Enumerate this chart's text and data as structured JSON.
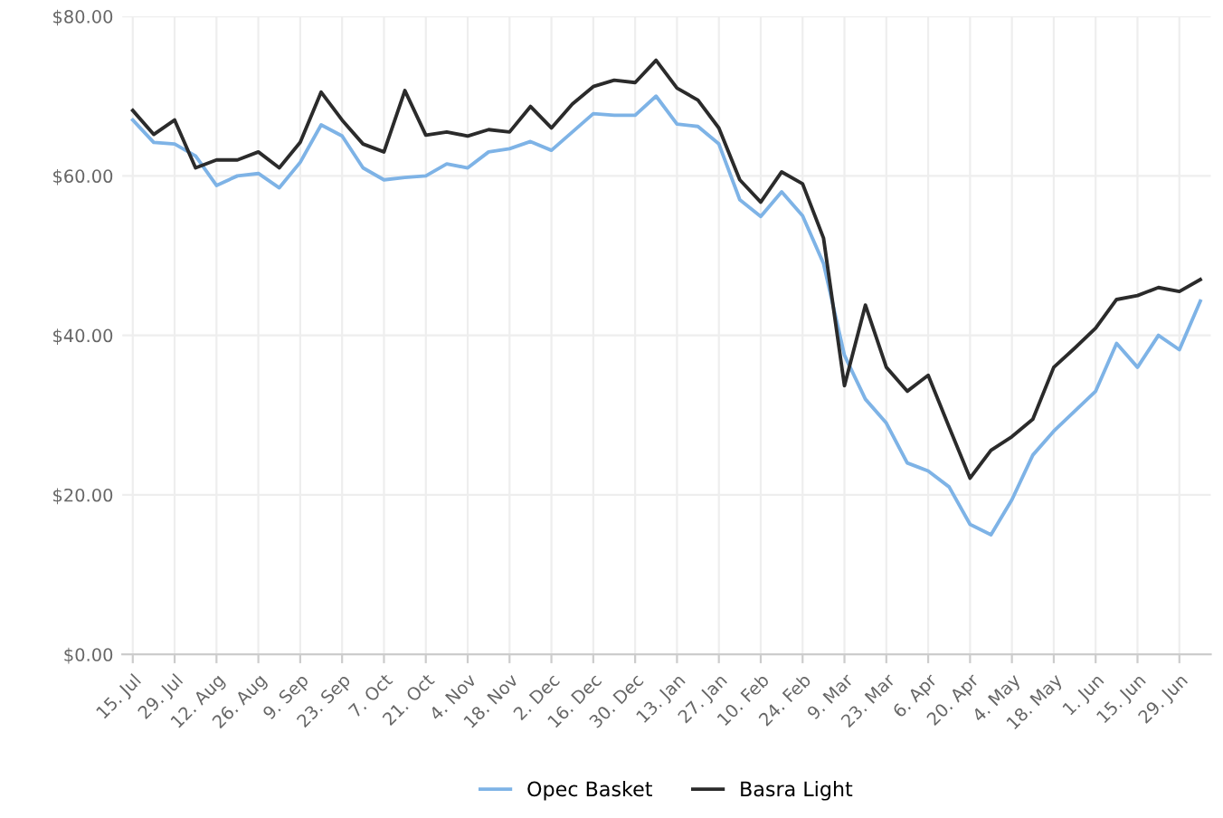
{
  "chart_data": {
    "type": "line",
    "ylim": [
      0,
      80
    ],
    "yticks": [
      {
        "value": 0,
        "label": "$0.00"
      },
      {
        "value": 20,
        "label": "$20.00"
      },
      {
        "value": 40,
        "label": "$40.00"
      },
      {
        "value": 60,
        "label": "$60.00"
      },
      {
        "value": 80,
        "label": "$80.00"
      }
    ],
    "categories": [
      "15. Jul",
      null,
      "29. Jul",
      null,
      "12. Aug",
      null,
      "26. Aug",
      null,
      "9. Sep",
      null,
      "23. Sep",
      null,
      "7. Oct",
      null,
      "21. Oct",
      null,
      "4. Nov",
      null,
      "18. Nov",
      null,
      "2. Dec",
      null,
      "16. Dec",
      null,
      "30. Dec",
      null,
      "13. Jan",
      null,
      "27. Jan",
      null,
      "10. Feb",
      null,
      "24. Feb",
      null,
      "9. Mar",
      null,
      "23. Mar",
      null,
      "6. Apr",
      null,
      "20. Apr",
      null,
      "4. May",
      null,
      "18. May",
      null,
      "1. Jun",
      null,
      "15. Jun",
      null,
      "29. Jun",
      null
    ],
    "grid": true,
    "legend": "bottom",
    "marker": "none",
    "line_style": "solid",
    "series": [
      {
        "name": "Opec Basket",
        "color": "#7eb3e6",
        "values": [
          67,
          64.2,
          64,
          62.5,
          58.8,
          60,
          60.3,
          58.5,
          61.7,
          66.4,
          65,
          61,
          59.5,
          59.8,
          60,
          61.5,
          61,
          63,
          63.4,
          64.3,
          63.2,
          65.5,
          67.8,
          67.6,
          67.6,
          70,
          66.5,
          66.2,
          64,
          57,
          54.9,
          58,
          55,
          49,
          37.5,
          32,
          29,
          24,
          23,
          21,
          16.3,
          15,
          19.4,
          25,
          28,
          30.5,
          33,
          39,
          36,
          40,
          38.2,
          44.3
        ]
      },
      {
        "name": "Basra Light",
        "color": "#2b2b2b",
        "values": [
          68.2,
          65.2,
          67,
          61,
          62,
          62,
          63,
          61,
          64.2,
          70.5,
          67,
          64,
          63,
          70.7,
          65.1,
          65.5,
          65,
          65.8,
          65.5,
          68.7,
          66,
          69,
          71.2,
          72,
          71.7,
          74.5,
          71,
          69.5,
          66,
          59.5,
          56.7,
          60.5,
          59,
          52.2,
          33.7,
          43.8,
          36,
          33,
          35,
          28.5,
          22.1,
          25.6,
          27.3,
          29.5,
          36,
          38.4,
          40.9,
          44.5,
          45,
          46,
          45.5,
          47
        ]
      }
    ]
  }
}
